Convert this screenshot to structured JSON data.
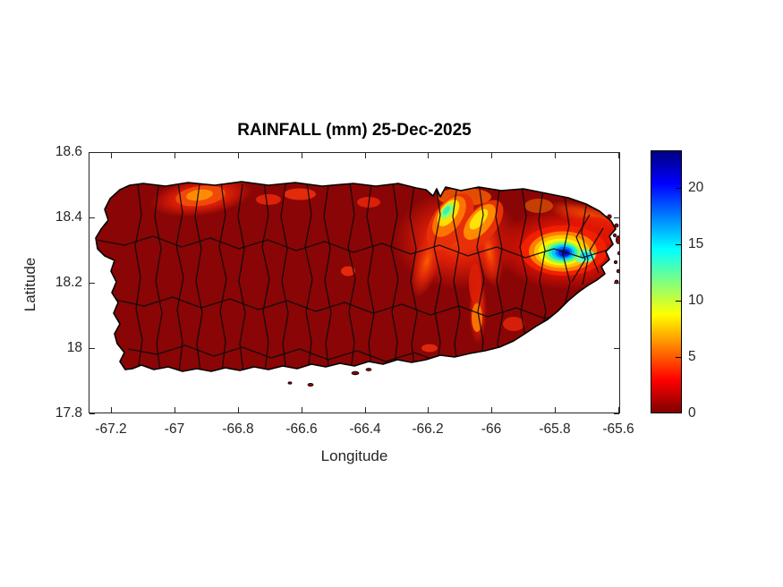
{
  "figure": {
    "title": "RAINFALL (mm) 25-Dec-2025"
  },
  "chart_data": {
    "type": "heatmap",
    "title": "RAINFALL (mm) 25-Dec-2025",
    "xlabel": "Longitude",
    "ylabel": "Latitude",
    "units": "mm",
    "region": "Puerto Rico with municipal boundaries",
    "xlim": [
      -67.27,
      -65.595
    ],
    "ylim": [
      17.8,
      18.6
    ],
    "xticks": {
      "values": [
        -67.2,
        -67,
        -66.8,
        -66.6,
        -66.4,
        -66.2,
        -66,
        -65.8,
        -65.6
      ],
      "labels": [
        "-67.2",
        "-67",
        "-66.8",
        "-66.6",
        "-66.4",
        "-66.2",
        "-66",
        "-65.8",
        "-65.6"
      ]
    },
    "yticks": {
      "values": [
        17.8,
        18,
        18.2,
        18.4,
        18.6
      ],
      "labels": [
        "17.8",
        "18",
        "18.2",
        "18.4",
        "18.6"
      ]
    },
    "grid": false,
    "legend": "colorbar-right",
    "colorbar": {
      "min": 0,
      "max": 23.3,
      "ticks": {
        "values": [
          0,
          5,
          10,
          15,
          20
        ],
        "labels": [
          "0",
          "5",
          "10",
          "15",
          "20"
        ]
      },
      "colormap": "jet reversed (0 = dark red, max = dark blue)",
      "stops": [
        "#800000",
        "#FF0000",
        "#FFFF00",
        "#00FFFF",
        "#0000FF",
        "#000080"
      ]
    },
    "background_value_mm": 0,
    "hotspots": [
      {
        "name": "northwest-coast",
        "lon": -66.92,
        "lat": 18.46,
        "peak_mm": 6
      },
      {
        "name": "north-central-west",
        "lon": -66.14,
        "lat": 18.41,
        "peak_mm": 12
      },
      {
        "name": "north-central-east",
        "lon": -66.04,
        "lat": 18.4,
        "peak_mm": 10
      },
      {
        "name": "northeast-el-yunque",
        "lon": -65.77,
        "lat": 18.29,
        "peak_mm": 23
      },
      {
        "name": "central-interior-streak",
        "lon": -66.05,
        "lat": 18.11,
        "peak_mm": 7
      }
    ]
  }
}
